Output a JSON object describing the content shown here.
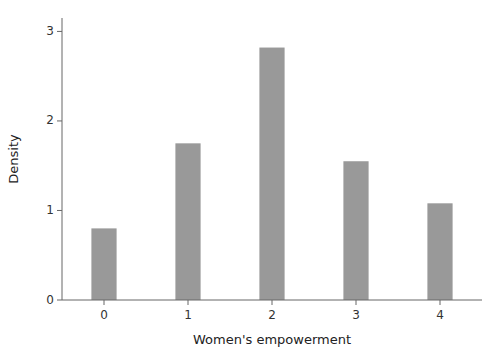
{
  "chart_data": {
    "type": "bar",
    "x": [
      0,
      1,
      2,
      3,
      4
    ],
    "values": [
      0.8,
      1.75,
      2.82,
      1.55,
      1.08
    ],
    "color": "#999999",
    "xlabel": "Women's empowerment",
    "ylabel": "Density",
    "xlim": [
      -0.5,
      4.5
    ],
    "ylim": [
      0,
      3.15
    ],
    "xticks": [
      0,
      1,
      2,
      3,
      4
    ],
    "yticks": [
      0,
      1,
      2,
      3
    ],
    "grid": false
  }
}
